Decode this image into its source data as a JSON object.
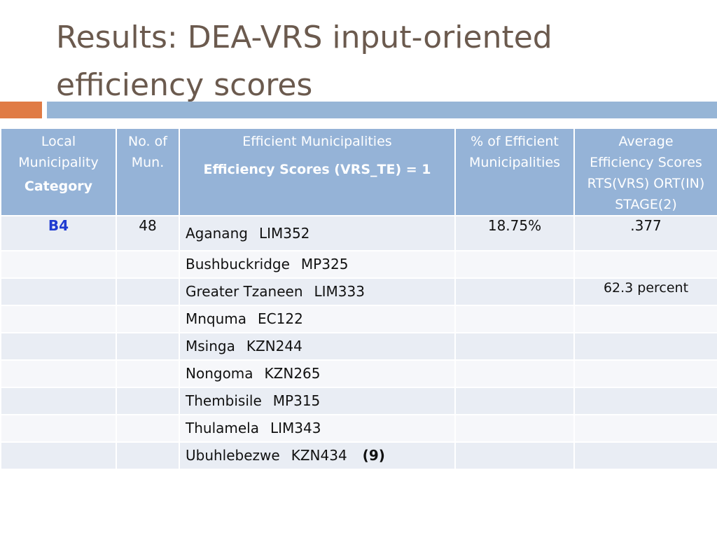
{
  "title": {
    "line1": "Results: DEA-VRS input-oriented",
    "line2": "efficiency scores"
  },
  "table": {
    "headers": {
      "col1_line1": "Local",
      "col1_line2": "Municipality",
      "col1_line3": "Category",
      "col2_line1": "No. of",
      "col2_line2": "Mun.",
      "col3_line1": "Efficient Municipalities",
      "col3_line2": "Efficiency Scores (VRS_TE) = 1",
      "col4_line1": "% of Efficient",
      "col4_line2": "Municipalities",
      "col5_line1": "Average",
      "col5_line2": "Efficiency Scores",
      "col5_line3": "RTS(VRS) ORT(IN)",
      "col5_line4": "STAGE(2)"
    },
    "category": "B4",
    "num_mun": "48",
    "pct_efficient": "18.75%",
    "avg_score": ".377",
    "avg_percent": "62.3 percent",
    "municipalities": [
      {
        "name": "Aganang",
        "code": "LIM352"
      },
      {
        "name": "Bushbuckridge",
        "code": "MP325"
      },
      {
        "name": "Greater Tzaneen",
        "code": "LIM333"
      },
      {
        "name": "Mnquma",
        "code": "EC122"
      },
      {
        "name": "Msinga",
        "code": "KZN244"
      },
      {
        "name": "Nongoma",
        "code": "KZN265"
      },
      {
        "name": "Thembisile",
        "code": "MP315"
      },
      {
        "name": "Thulamela",
        "code": "LIM343"
      },
      {
        "name": "Ubuhlebezwe",
        "code": "KZN434"
      }
    ],
    "count_label": "(9)"
  }
}
